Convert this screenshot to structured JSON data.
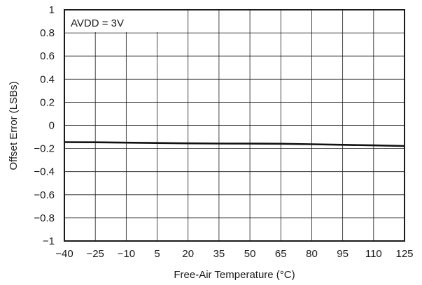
{
  "chart_data": {
    "type": "line",
    "title": "",
    "xlabel": "Free-Air Temperature (°C)",
    "ylabel": "Offset Error (LSBs)",
    "xlim": [
      -40,
      125
    ],
    "ylim": [
      -1,
      1
    ],
    "x_ticks": [
      -40,
      -25,
      -10,
      5,
      20,
      35,
      50,
      65,
      80,
      95,
      110,
      125
    ],
    "x_tick_labels": [
      "−40",
      "−25",
      "−10",
      "5",
      "20",
      "35",
      "50",
      "65",
      "80",
      "95",
      "110",
      "125"
    ],
    "y_ticks": [
      1,
      0.8,
      0.6,
      0.4,
      0.2,
      0,
      -0.2,
      -0.4,
      -0.6,
      -0.8,
      -1
    ],
    "y_tick_labels": [
      "1",
      "0.8",
      "0.6",
      "0.4",
      "0.2",
      "0",
      "−0.2",
      "−0.4",
      "−0.6",
      "−0.8",
      "−1"
    ],
    "grid": true,
    "annotation": "AVDD = 3V",
    "series": [
      {
        "x": [
          -40,
          -25,
          -10,
          5,
          20,
          35,
          50,
          65,
          80,
          95,
          110,
          125
        ],
        "y": [
          -0.145,
          -0.146,
          -0.149,
          -0.152,
          -0.155,
          -0.157,
          -0.158,
          -0.159,
          -0.163,
          -0.168,
          -0.173,
          -0.178
        ]
      }
    ]
  }
}
